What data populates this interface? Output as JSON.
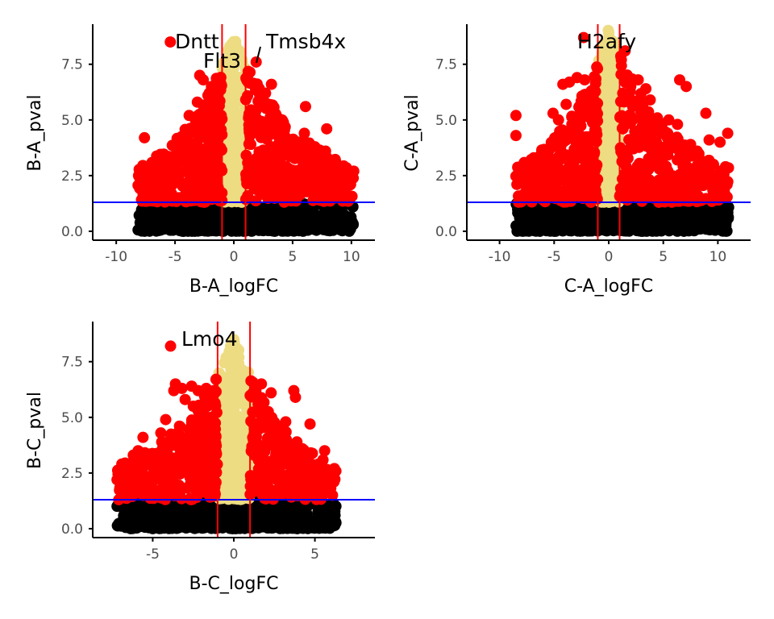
{
  "colors": {
    "nonsig": "#000000",
    "lowfc": "#EEDC82",
    "sig": "#FF0000",
    "pval_line": "#0000FF",
    "fc_line": "#FF0000",
    "axis": "#000000",
    "tick_label": "#4D4D4D"
  },
  "chart_data": [
    {
      "type": "scatter",
      "title": "",
      "xlabel": "B-A_logFC",
      "ylabel": "B-A_pval",
      "xlim": [
        -12,
        12
      ],
      "ylim": [
        -0.4,
        9.3
      ],
      "xticks": [
        -10,
        -5,
        0,
        5,
        10
      ],
      "xtick_labels": [
        "-10",
        "-5",
        "0",
        "5",
        "10"
      ],
      "yticks": [
        0,
        2.5,
        5,
        7.5
      ],
      "ytick_labels": [
        "0.0",
        "2.5",
        "5.0",
        "7.5"
      ],
      "pval_threshold": 1.3,
      "logfc_thresholds": [
        -1,
        1
      ],
      "labels": [
        {
          "gene": "Dntt",
          "x": -5.4,
          "y": 8.5
        },
        {
          "gene": "Tmsb4x",
          "x": 1.9,
          "y": 7.6
        },
        {
          "gene": "Flt3",
          "x": 1.9,
          "y": 7.6
        }
      ],
      "spread": {
        "left": -8.2,
        "right": 10.2,
        "ymax": 8.5
      },
      "sig_points": [
        {
          "x": -5.4,
          "y": 8.5
        },
        {
          "x": -7.6,
          "y": 4.2
        },
        {
          "x": -8.1,
          "y": 2.5
        },
        {
          "x": -2.9,
          "y": 7.0
        },
        {
          "x": -2.6,
          "y": 6.8
        },
        {
          "x": -3.1,
          "y": 5.8
        },
        {
          "x": -3.2,
          "y": 4.8
        },
        {
          "x": -3.8,
          "y": 5.2
        },
        {
          "x": -4.3,
          "y": 3.5
        },
        {
          "x": -1.9,
          "y": 6.5
        },
        {
          "x": -1.6,
          "y": 5.4
        },
        {
          "x": -1.4,
          "y": 4.8
        },
        {
          "x": -2.2,
          "y": 6.1
        },
        {
          "x": -5.8,
          "y": 2.9
        },
        {
          "x": -6.2,
          "y": 2.6
        },
        {
          "x": -3.4,
          "y": 3.0
        },
        {
          "x": -2.1,
          "y": 4.1
        },
        {
          "x": -1.2,
          "y": 3.6
        },
        {
          "x": -1.5,
          "y": 2.6
        },
        {
          "x": -4.8,
          "y": 2.2
        },
        {
          "x": -5.3,
          "y": 1.7
        },
        {
          "x": -2.5,
          "y": 1.9
        },
        {
          "x": -1.8,
          "y": 1.5
        },
        {
          "x": 1.9,
          "y": 7.6
        },
        {
          "x": 3.2,
          "y": 6.6
        },
        {
          "x": 2.7,
          "y": 6.2
        },
        {
          "x": 2.3,
          "y": 5.9
        },
        {
          "x": 6.1,
          "y": 5.6
        },
        {
          "x": 7.9,
          "y": 4.6
        },
        {
          "x": 6.0,
          "y": 4.4
        },
        {
          "x": 7.8,
          "y": 3.6
        },
        {
          "x": 10.2,
          "y": 2.7
        },
        {
          "x": 9.3,
          "y": 2.4
        },
        {
          "x": 7.4,
          "y": 2.2
        },
        {
          "x": 8.2,
          "y": 3.0
        },
        {
          "x": 2.4,
          "y": 4.9
        },
        {
          "x": 1.3,
          "y": 4.6
        },
        {
          "x": 1.6,
          "y": 5.2
        },
        {
          "x": 4.7,
          "y": 2.8
        },
        {
          "x": 5.8,
          "y": 3.2
        },
        {
          "x": 5.3,
          "y": 2.0
        },
        {
          "x": 3.5,
          "y": 3.8
        },
        {
          "x": 1.2,
          "y": 3.1
        },
        {
          "x": 2.8,
          "y": 1.8
        }
      ]
    },
    {
      "type": "scatter",
      "title": "",
      "xlabel": "C-A_logFC",
      "ylabel": "C-A_pval",
      "xlim": [
        -13,
        13
      ],
      "ylim": [
        -0.4,
        9.3
      ],
      "xticks": [
        -10,
        -5,
        0,
        5,
        10
      ],
      "xtick_labels": [
        "-10",
        "-5",
        "0",
        "5",
        "10"
      ],
      "yticks": [
        0,
        2.5,
        5,
        7.5
      ],
      "ytick_labels": [
        "0.0",
        "2.5",
        "5.0",
        "7.5"
      ],
      "pval_threshold": 1.3,
      "logfc_thresholds": [
        -1,
        1
      ],
      "labels": [
        {
          "gene": "H2afy",
          "x": -2.3,
          "y": 8.7
        }
      ],
      "spread": {
        "left": -8.5,
        "right": 11.0,
        "ymax": 8.7
      },
      "sig_points": [
        {
          "x": -2.3,
          "y": 8.7
        },
        {
          "x": 1.5,
          "y": 8.1
        },
        {
          "x": -8.5,
          "y": 5.2
        },
        {
          "x": -8.5,
          "y": 4.3
        },
        {
          "x": -4.2,
          "y": 6.6
        },
        {
          "x": -3.6,
          "y": 6.7
        },
        {
          "x": -2.9,
          "y": 6.9
        },
        {
          "x": -2.2,
          "y": 6.8
        },
        {
          "x": -1.6,
          "y": 6.3
        },
        {
          "x": -3.9,
          "y": 5.7
        },
        {
          "x": -5.1,
          "y": 5.3
        },
        {
          "x": -4.6,
          "y": 5.0
        },
        {
          "x": -6.5,
          "y": 3.0
        },
        {
          "x": -5.7,
          "y": 3.4
        },
        {
          "x": -2.7,
          "y": 5.6
        },
        {
          "x": -1.3,
          "y": 4.9
        },
        {
          "x": -3.2,
          "y": 4.2
        },
        {
          "x": -1.9,
          "y": 3.8
        },
        {
          "x": -4.9,
          "y": 2.4
        },
        {
          "x": -1.4,
          "y": 2.6
        },
        {
          "x": -3.5,
          "y": 1.9
        },
        {
          "x": 2.7,
          "y": 6.8
        },
        {
          "x": 3.4,
          "y": 6.4
        },
        {
          "x": 1.9,
          "y": 6.2
        },
        {
          "x": 2.2,
          "y": 5.6
        },
        {
          "x": 3.8,
          "y": 5.9
        },
        {
          "x": 6.5,
          "y": 6.8
        },
        {
          "x": 7.1,
          "y": 6.5
        },
        {
          "x": 5.5,
          "y": 5.0
        },
        {
          "x": 6.3,
          "y": 4.8
        },
        {
          "x": 8.9,
          "y": 5.3
        },
        {
          "x": 10.9,
          "y": 4.4
        },
        {
          "x": 9.2,
          "y": 4.1
        },
        {
          "x": 10.2,
          "y": 4.0
        },
        {
          "x": 7.5,
          "y": 3.9
        },
        {
          "x": 8.1,
          "y": 3.6
        },
        {
          "x": 9.6,
          "y": 3.0
        },
        {
          "x": 10.7,
          "y": 2.9
        },
        {
          "x": 7.4,
          "y": 2.4
        },
        {
          "x": 7.4,
          "y": 1.9
        },
        {
          "x": 4.6,
          "y": 3.3
        },
        {
          "x": 5.1,
          "y": 2.7
        },
        {
          "x": 1.3,
          "y": 4.6
        },
        {
          "x": 2.9,
          "y": 4.0
        },
        {
          "x": 1.6,
          "y": 2.9
        },
        {
          "x": 3.1,
          "y": 2.2
        }
      ]
    },
    {
      "type": "scatter",
      "title": "",
      "xlabel": "B-C_logFC",
      "ylabel": "B-C_pval",
      "xlim": [
        -8.7,
        8.7
      ],
      "ylim": [
        -0.4,
        9.3
      ],
      "xticks": [
        -5,
        0,
        5
      ],
      "xtick_labels": [
        "-5",
        "0",
        "5"
      ],
      "yticks": [
        0,
        2.5,
        5,
        7.5
      ],
      "ytick_labels": [
        "0.0",
        "2.5",
        "5.0",
        "7.5"
      ],
      "pval_threshold": 1.3,
      "logfc_thresholds": [
        -1,
        1
      ],
      "labels": [
        {
          "gene": "Lmo4",
          "x": -3.9,
          "y": 8.2
        }
      ],
      "spread": {
        "left": -7.2,
        "right": 6.3,
        "ymax": 8.2
      },
      "sig_points": [
        {
          "x": -3.9,
          "y": 8.2
        },
        {
          "x": -3.6,
          "y": 6.5
        },
        {
          "x": -3.2,
          "y": 6.3
        },
        {
          "x": -3.7,
          "y": 6.2
        },
        {
          "x": -2.6,
          "y": 6.4
        },
        {
          "x": -2.2,
          "y": 6.2
        },
        {
          "x": -1.7,
          "y": 6.3
        },
        {
          "x": -3.0,
          "y": 5.8
        },
        {
          "x": -2.5,
          "y": 5.5
        },
        {
          "x": -4.2,
          "y": 4.9
        },
        {
          "x": -4.5,
          "y": 4.3
        },
        {
          "x": -5.6,
          "y": 4.1
        },
        {
          "x": -4.4,
          "y": 3.6
        },
        {
          "x": -5.9,
          "y": 3.5
        },
        {
          "x": -6.2,
          "y": 3.3
        },
        {
          "x": -7.2,
          "y": 2.2
        },
        {
          "x": -6.5,
          "y": 2.5
        },
        {
          "x": -4.9,
          "y": 2.6
        },
        {
          "x": -5.3,
          "y": 2.0
        },
        {
          "x": -3.4,
          "y": 2.9
        },
        {
          "x": -1.4,
          "y": 5.0
        },
        {
          "x": -1.8,
          "y": 3.7
        },
        {
          "x": -2.7,
          "y": 2.3
        },
        {
          "x": -1.3,
          "y": 2.7
        },
        {
          "x": -3.5,
          "y": 1.6
        },
        {
          "x": 1.7,
          "y": 6.5
        },
        {
          "x": 2.3,
          "y": 6.1
        },
        {
          "x": 3.7,
          "y": 6.2
        },
        {
          "x": 3.8,
          "y": 5.9
        },
        {
          "x": 1.5,
          "y": 5.6
        },
        {
          "x": 2.1,
          "y": 5.2
        },
        {
          "x": 3.2,
          "y": 4.8
        },
        {
          "x": 4.7,
          "y": 4.7
        },
        {
          "x": 2.6,
          "y": 4.4
        },
        {
          "x": 3.0,
          "y": 3.8
        },
        {
          "x": 1.3,
          "y": 4.2
        },
        {
          "x": 4.2,
          "y": 3.3
        },
        {
          "x": 5.6,
          "y": 3.5
        },
        {
          "x": 6.2,
          "y": 2.7
        },
        {
          "x": 5.4,
          "y": 2.8
        },
        {
          "x": 4.6,
          "y": 2.2
        },
        {
          "x": 1.8,
          "y": 2.8
        },
        {
          "x": 2.9,
          "y": 2.0
        },
        {
          "x": 1.4,
          "y": 1.7
        }
      ]
    }
  ]
}
